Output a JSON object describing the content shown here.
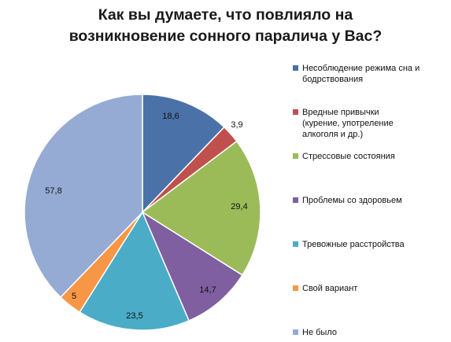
{
  "chart_data": {
    "type": "pie",
    "title": "Как вы думаете, что повлияло на возникновение сонного паралича у Вас?",
    "title_lines": [
      "Как вы думаете, что повлияло на",
      "возникновение сонного паралича у Вас?"
    ],
    "legend_position": "right",
    "slices": [
      {
        "label": "Несоблюдение режима сна и\nбодрствования",
        "value": 18.6,
        "display": "18,6",
        "color": "#4a72a8"
      },
      {
        "label": "Вредные привычки\n(курение, употреление\nалкоголя и др.)",
        "value": 3.9,
        "display": "3,9",
        "color": "#c0504d"
      },
      {
        "label": "Стрессовые состояния",
        "value": 29.4,
        "display": "29,4",
        "color": "#9bbb59"
      },
      {
        "label": "Проблемы со здоровьем",
        "value": 14.7,
        "display": "14,7",
        "color": "#7f5fa0"
      },
      {
        "label": "Тревожные расстройства",
        "value": 23.5,
        "display": "23,5",
        "color": "#4aacc6"
      },
      {
        "label": "Свой вариант",
        "value": 5,
        "display": "5",
        "color": "#f79646"
      },
      {
        "label": "Не было",
        "value": 57.8,
        "display": "57,8",
        "color": "#95abd4"
      }
    ]
  }
}
